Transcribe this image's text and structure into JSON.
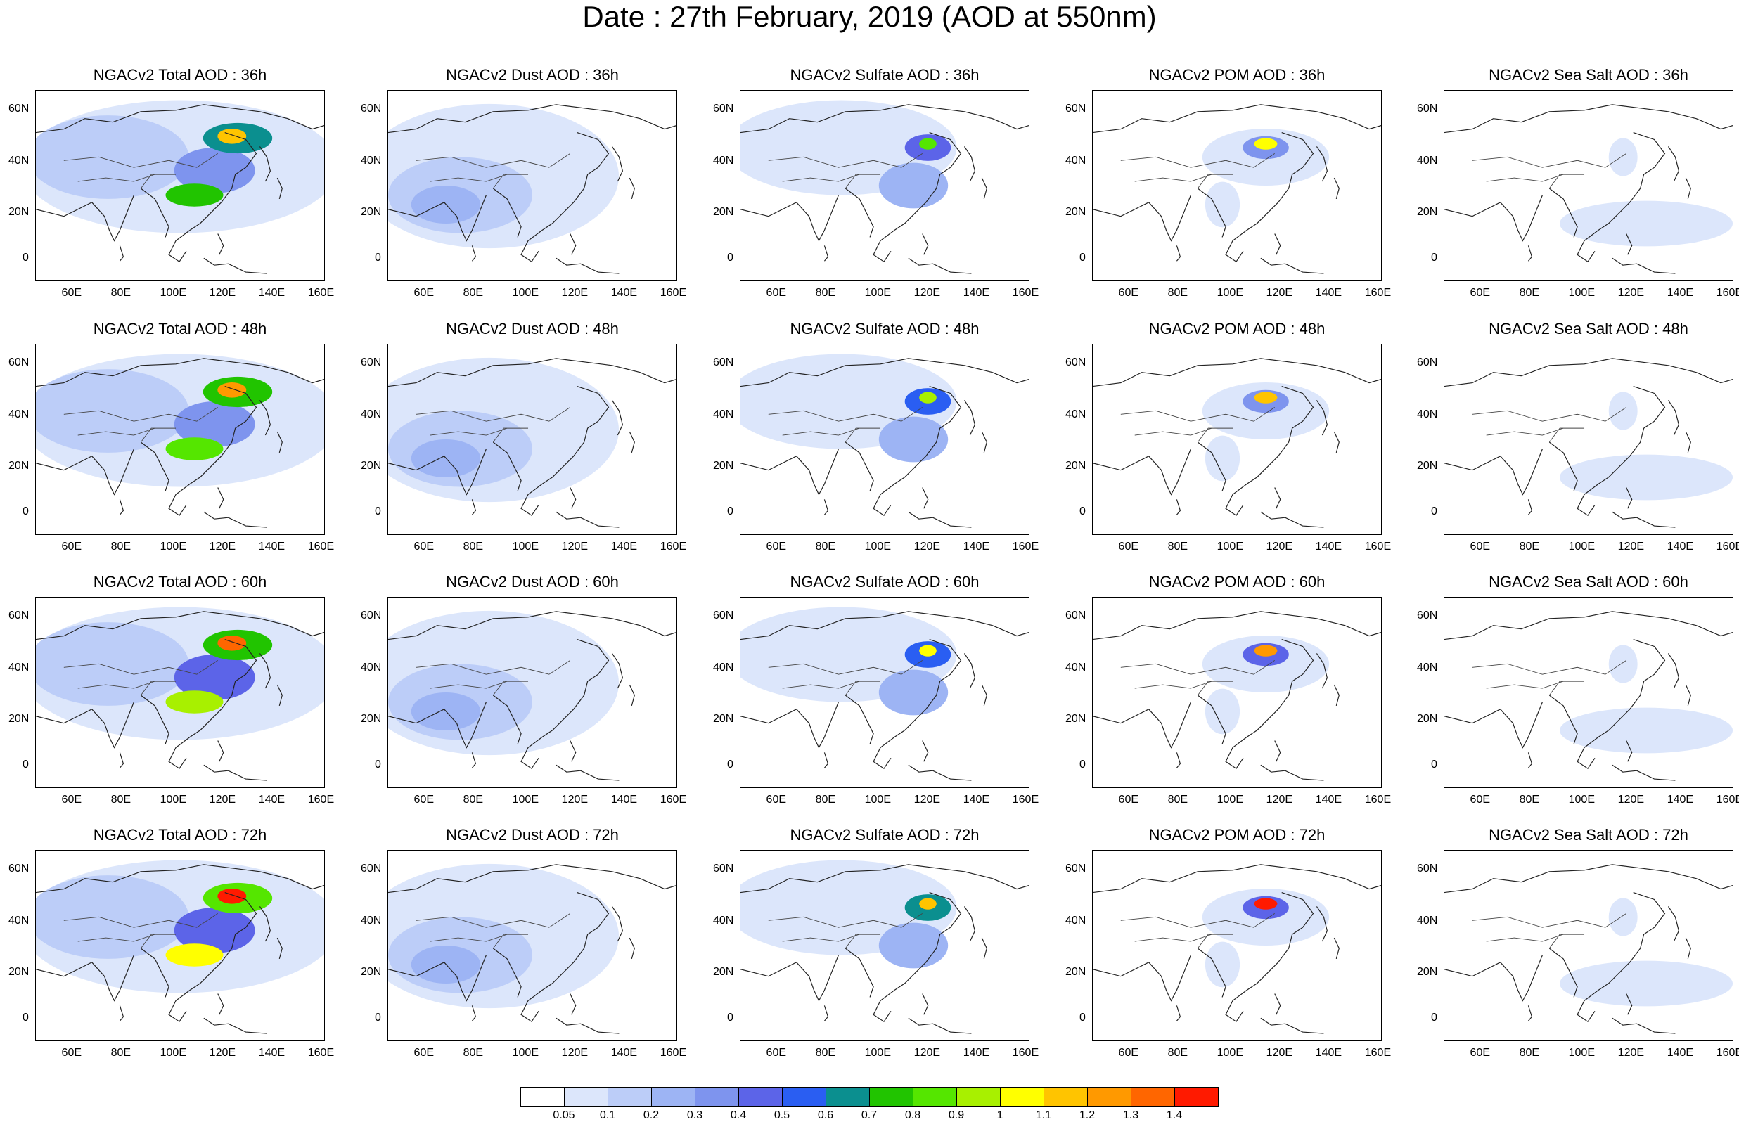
{
  "title": "Date : 27th February, 2019 (AOD at 550nm)",
  "rows": [
    [
      "NGACv2 Total AOD : 36h",
      "NGACv2 Dust AOD : 36h",
      "NGACv2 Sulfate AOD : 36h",
      "NGACv2 POM AOD : 36h",
      "NGACv2 Sea Salt AOD : 36h"
    ],
    [
      "NGACv2 Total AOD : 48h",
      "NGACv2 Dust AOD : 48h",
      "NGACv2 Sulfate AOD : 48h",
      "NGACv2 POM AOD : 48h",
      "NGACv2 Sea Salt AOD : 48h"
    ],
    [
      "NGACv2 Total AOD : 60h",
      "NGACv2 Dust AOD : 60h",
      "NGACv2 Sulfate AOD : 60h",
      "NGACv2 POM AOD : 60h",
      "NGACv2 Sea Salt AOD : 60h"
    ],
    [
      "NGACv2 Total AOD : 72h",
      "NGACv2 Dust AOD : 72h",
      "NGACv2 Sulfate AOD : 72h",
      "NGACv2 POM AOD : 72h",
      "NGACv2 Sea Salt  AOD : 72h"
    ]
  ],
  "lon_ticks": [
    "60E",
    "80E",
    "100E",
    "120E",
    "140E",
    "160E"
  ],
  "lat_ticks": [
    "60N",
    "40N",
    "20N",
    "0"
  ],
  "colorbar": {
    "labels": [
      "0.05",
      "0.1",
      "0.2",
      "0.3",
      "0.4",
      "0.5",
      "0.6",
      "0.7",
      "0.8",
      "0.9",
      "1",
      "1.1",
      "1.2",
      "1.3",
      "1.4"
    ],
    "colors": [
      "#ffffff",
      "#dce6fb",
      "#bccdf8",
      "#9db4f4",
      "#7e94ee",
      "#5c64e8",
      "#2a5ef2",
      "#0b8f8f",
      "#21c400",
      "#55e600",
      "#a8f000",
      "#ffff00",
      "#ffc400",
      "#ff9900",
      "#ff6600",
      "#ff1a00"
    ]
  }
}
